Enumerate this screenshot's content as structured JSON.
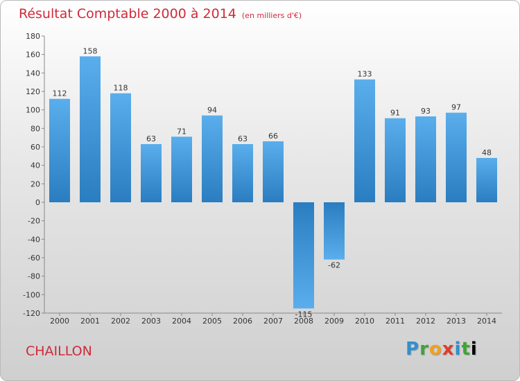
{
  "title": "Résultat Comptable 2000 à 2014",
  "subtitle": "(en milliers d'€)",
  "commune": "CHAILLON",
  "logo": "Proxiti",
  "colors": {
    "title": "#cf2a3a",
    "bar_light": "#5aaeec",
    "bar_dark": "#2a7dc0"
  },
  "chart_data": {
    "type": "bar",
    "categories": [
      "2000",
      "2001",
      "2002",
      "2003",
      "2004",
      "2005",
      "2006",
      "2007",
      "2008",
      "2009",
      "2010",
      "2011",
      "2012",
      "2013",
      "2014"
    ],
    "values": [
      112,
      158,
      118,
      63,
      71,
      94,
      63,
      66,
      -115,
      -62,
      133,
      91,
      93,
      97,
      48
    ],
    "data_labels": [
      "112",
      "158",
      "118",
      "63",
      "71",
      "94",
      "63",
      "66",
      "-115",
      "-62",
      "133",
      "91",
      "93",
      "97",
      "48"
    ],
    "ylim": [
      -120,
      180
    ],
    "yticks": [
      180,
      160,
      140,
      120,
      100,
      80,
      60,
      40,
      20,
      0,
      -20,
      -40,
      -60,
      -80,
      -100,
      -120
    ],
    "grid": false,
    "legend": "none"
  }
}
